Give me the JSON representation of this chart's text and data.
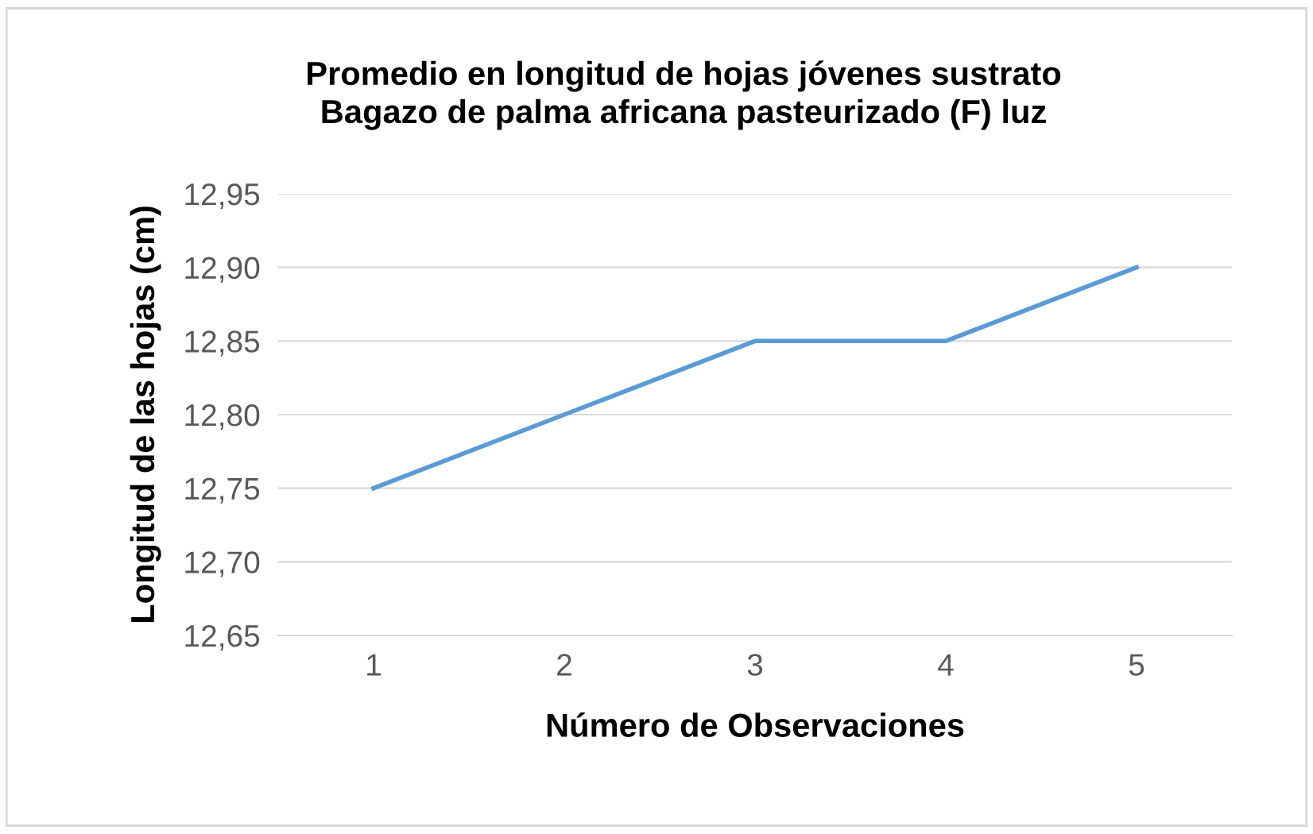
{
  "chart_data": {
    "type": "line",
    "title": "Promedio en longitud de hojas jóvenes sustrato\nBagazo de palma africana pasteurizado (F) luz",
    "xlabel": "Número de Observaciones",
    "ylabel": "Longitud de las hojas (cm)",
    "categories": [
      "1",
      "2",
      "3",
      "4",
      "5"
    ],
    "series": [
      {
        "color": "#5b9bd5",
        "values": [
          12.75,
          12.8,
          12.85,
          12.85,
          12.9
        ]
      }
    ],
    "ylim": [
      12.65,
      12.95
    ],
    "yticks": [
      {
        "value": 12.65,
        "label": "12,65"
      },
      {
        "value": 12.7,
        "label": "12,70"
      },
      {
        "value": 12.75,
        "label": "12,75"
      },
      {
        "value": 12.8,
        "label": "12,80"
      },
      {
        "value": 12.85,
        "label": "12,85"
      },
      {
        "value": 12.9,
        "label": "12,90"
      },
      {
        "value": 12.95,
        "label": "12,95"
      }
    ],
    "grid": "y",
    "marker": "none",
    "line_style": "solid",
    "legend": false
  }
}
